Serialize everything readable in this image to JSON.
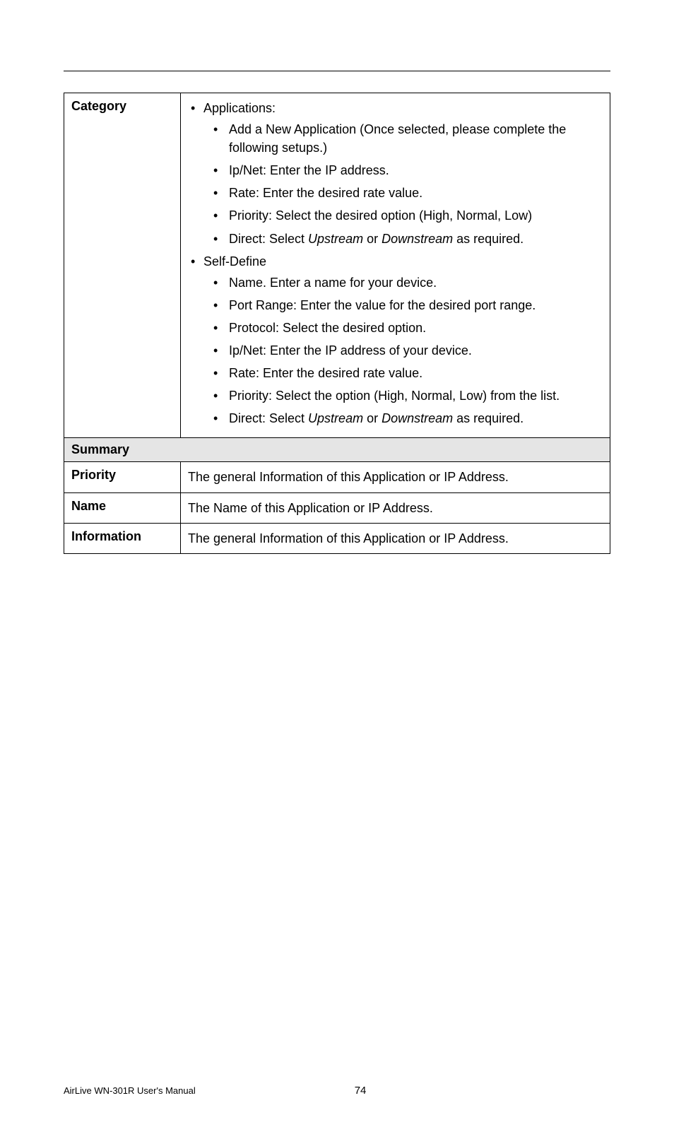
{
  "category": {
    "label": "Category",
    "applications": {
      "heading": "Applications:",
      "items": [
        "Add a New Application (Once selected, please complete the following setups.)",
        "Ip/Net: Enter the IP address.",
        "Rate: Enter the desired rate value.",
        "Priority: Select the desired option (High, Normal, Low)"
      ],
      "direct_prefix": "Direct: Select ",
      "direct_up": "Upstream",
      "direct_mid": " or ",
      "direct_down": "Downstream",
      "direct_suffix": " as required."
    },
    "selfdefine": {
      "heading": "Self-Define",
      "items": [
        "Name. Enter a name for your device.",
        "Port Range: Enter the value for the desired port range.",
        "Protocol: Select the desired option.",
        "Ip/Net: Enter the IP address of your device.",
        "Rate: Enter the desired rate value.",
        "Priority: Select the option (High, Normal, Low) from the list."
      ],
      "direct_prefix": "Direct: Select ",
      "direct_up": "Upstream",
      "direct_mid": " or ",
      "direct_down": "Downstream",
      "direct_suffix": " as required."
    }
  },
  "summary": {
    "heading": "Summary",
    "rows": {
      "priority": {
        "label": "Priority",
        "text": "The general Information of this Application or IP Address."
      },
      "name": {
        "label": "Name",
        "text": "The Name of this Application or IP Address."
      },
      "information": {
        "label": "Information",
        "text": "The general Information of this Application or IP Address."
      }
    }
  },
  "footer": {
    "manual": "AirLive WN-301R User's Manual",
    "page": "74"
  }
}
